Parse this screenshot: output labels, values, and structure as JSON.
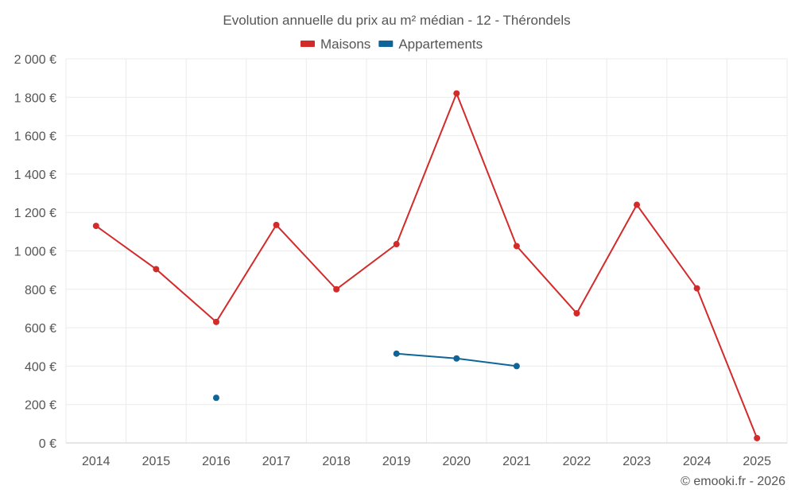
{
  "chart_data": {
    "type": "line",
    "title": "Evolution annuelle du prix au m² médian - 12 - Thérondels",
    "categories": [
      "2014",
      "2015",
      "2016",
      "2017",
      "2018",
      "2019",
      "2020",
      "2021",
      "2022",
      "2023",
      "2024",
      "2025"
    ],
    "series": [
      {
        "name": "Maisons",
        "color": "#d32a2a",
        "values": [
          1130,
          905,
          630,
          1135,
          800,
          1035,
          1820,
          1025,
          675,
          1240,
          805,
          25
        ]
      },
      {
        "name": "Appartements",
        "color": "#0d6599",
        "values": [
          null,
          null,
          235,
          null,
          null,
          465,
          440,
          400,
          null,
          null,
          null,
          null
        ]
      }
    ],
    "ylim": [
      0,
      2000
    ],
    "yticks": [
      0,
      200,
      400,
      600,
      800,
      1000,
      1200,
      1400,
      1600,
      1800,
      2000
    ],
    "ytick_labels": [
      "0 €",
      "200 €",
      "400 €",
      "600 €",
      "800 €",
      "1 000 €",
      "1 200 €",
      "1 400 €",
      "1 600 €",
      "1 800 €",
      "2 000 €"
    ],
    "xlabel": "",
    "ylabel": "",
    "legend_position": "top-center",
    "grid": true
  },
  "credit": "© emooki.fr - 2026"
}
